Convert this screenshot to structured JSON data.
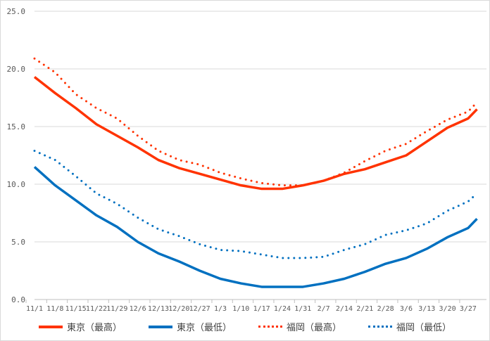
{
  "chart_data": {
    "type": "line",
    "title": "",
    "xlabel": "",
    "ylabel": "",
    "ylim": [
      0,
      25
    ],
    "yticks": [
      "0.0",
      "5.0",
      "10.0",
      "15.0",
      "20.0",
      "25.0"
    ],
    "x_ticks": [
      "11/1",
      "11/8",
      "11/15",
      "11/22",
      "11/29",
      "12/6",
      "12/13",
      "12/20",
      "12/27",
      "1/3",
      "1/10",
      "1/17",
      "1/24",
      "1/31",
      "2/7",
      "2/14",
      "2/21",
      "2/28",
      "3/6",
      "3/13",
      "3/20",
      "3/27"
    ],
    "x_days": [
      0,
      7,
      14,
      21,
      28,
      35,
      42,
      49,
      56,
      63,
      70,
      77,
      84,
      91,
      98,
      105,
      112,
      119,
      126,
      133,
      140,
      147,
      150
    ],
    "grid": true,
    "legend_position": "bottom",
    "series": [
      {
        "name": "東京（最高）",
        "color": "#ff3300",
        "style": "solid",
        "values": [
          19.3,
          17.9,
          16.6,
          15.2,
          14.2,
          13.2,
          12.1,
          11.4,
          10.9,
          10.4,
          9.9,
          9.6,
          9.6,
          9.9,
          10.3,
          10.9,
          11.3,
          11.9,
          12.5,
          13.7,
          14.9,
          15.7,
          16.5
        ]
      },
      {
        "name": "東京（最低）",
        "color": "#0070c0",
        "style": "solid",
        "values": [
          11.5,
          9.9,
          8.6,
          7.3,
          6.3,
          5.0,
          4.0,
          3.3,
          2.5,
          1.8,
          1.4,
          1.1,
          1.1,
          1.1,
          1.4,
          1.8,
          2.4,
          3.1,
          3.6,
          4.4,
          5.4,
          6.2,
          7.0
        ]
      },
      {
        "name": "福岡（最高）",
        "color": "#ff3300",
        "style": "dotted",
        "values": [
          20.9,
          19.7,
          17.8,
          16.6,
          15.7,
          14.2,
          12.9,
          12.1,
          11.7,
          11.0,
          10.5,
          10.1,
          9.9,
          9.9,
          10.3,
          11.0,
          12.0,
          12.9,
          13.5,
          14.6,
          15.6,
          16.3,
          17.1
        ]
      },
      {
        "name": "福岡（最低）",
        "color": "#0070c0",
        "style": "dotted",
        "values": [
          12.9,
          12.1,
          10.7,
          9.2,
          8.3,
          7.1,
          6.1,
          5.5,
          4.8,
          4.3,
          4.2,
          3.9,
          3.6,
          3.6,
          3.7,
          4.3,
          4.8,
          5.6,
          6.0,
          6.6,
          7.7,
          8.5,
          9.2
        ]
      }
    ]
  }
}
